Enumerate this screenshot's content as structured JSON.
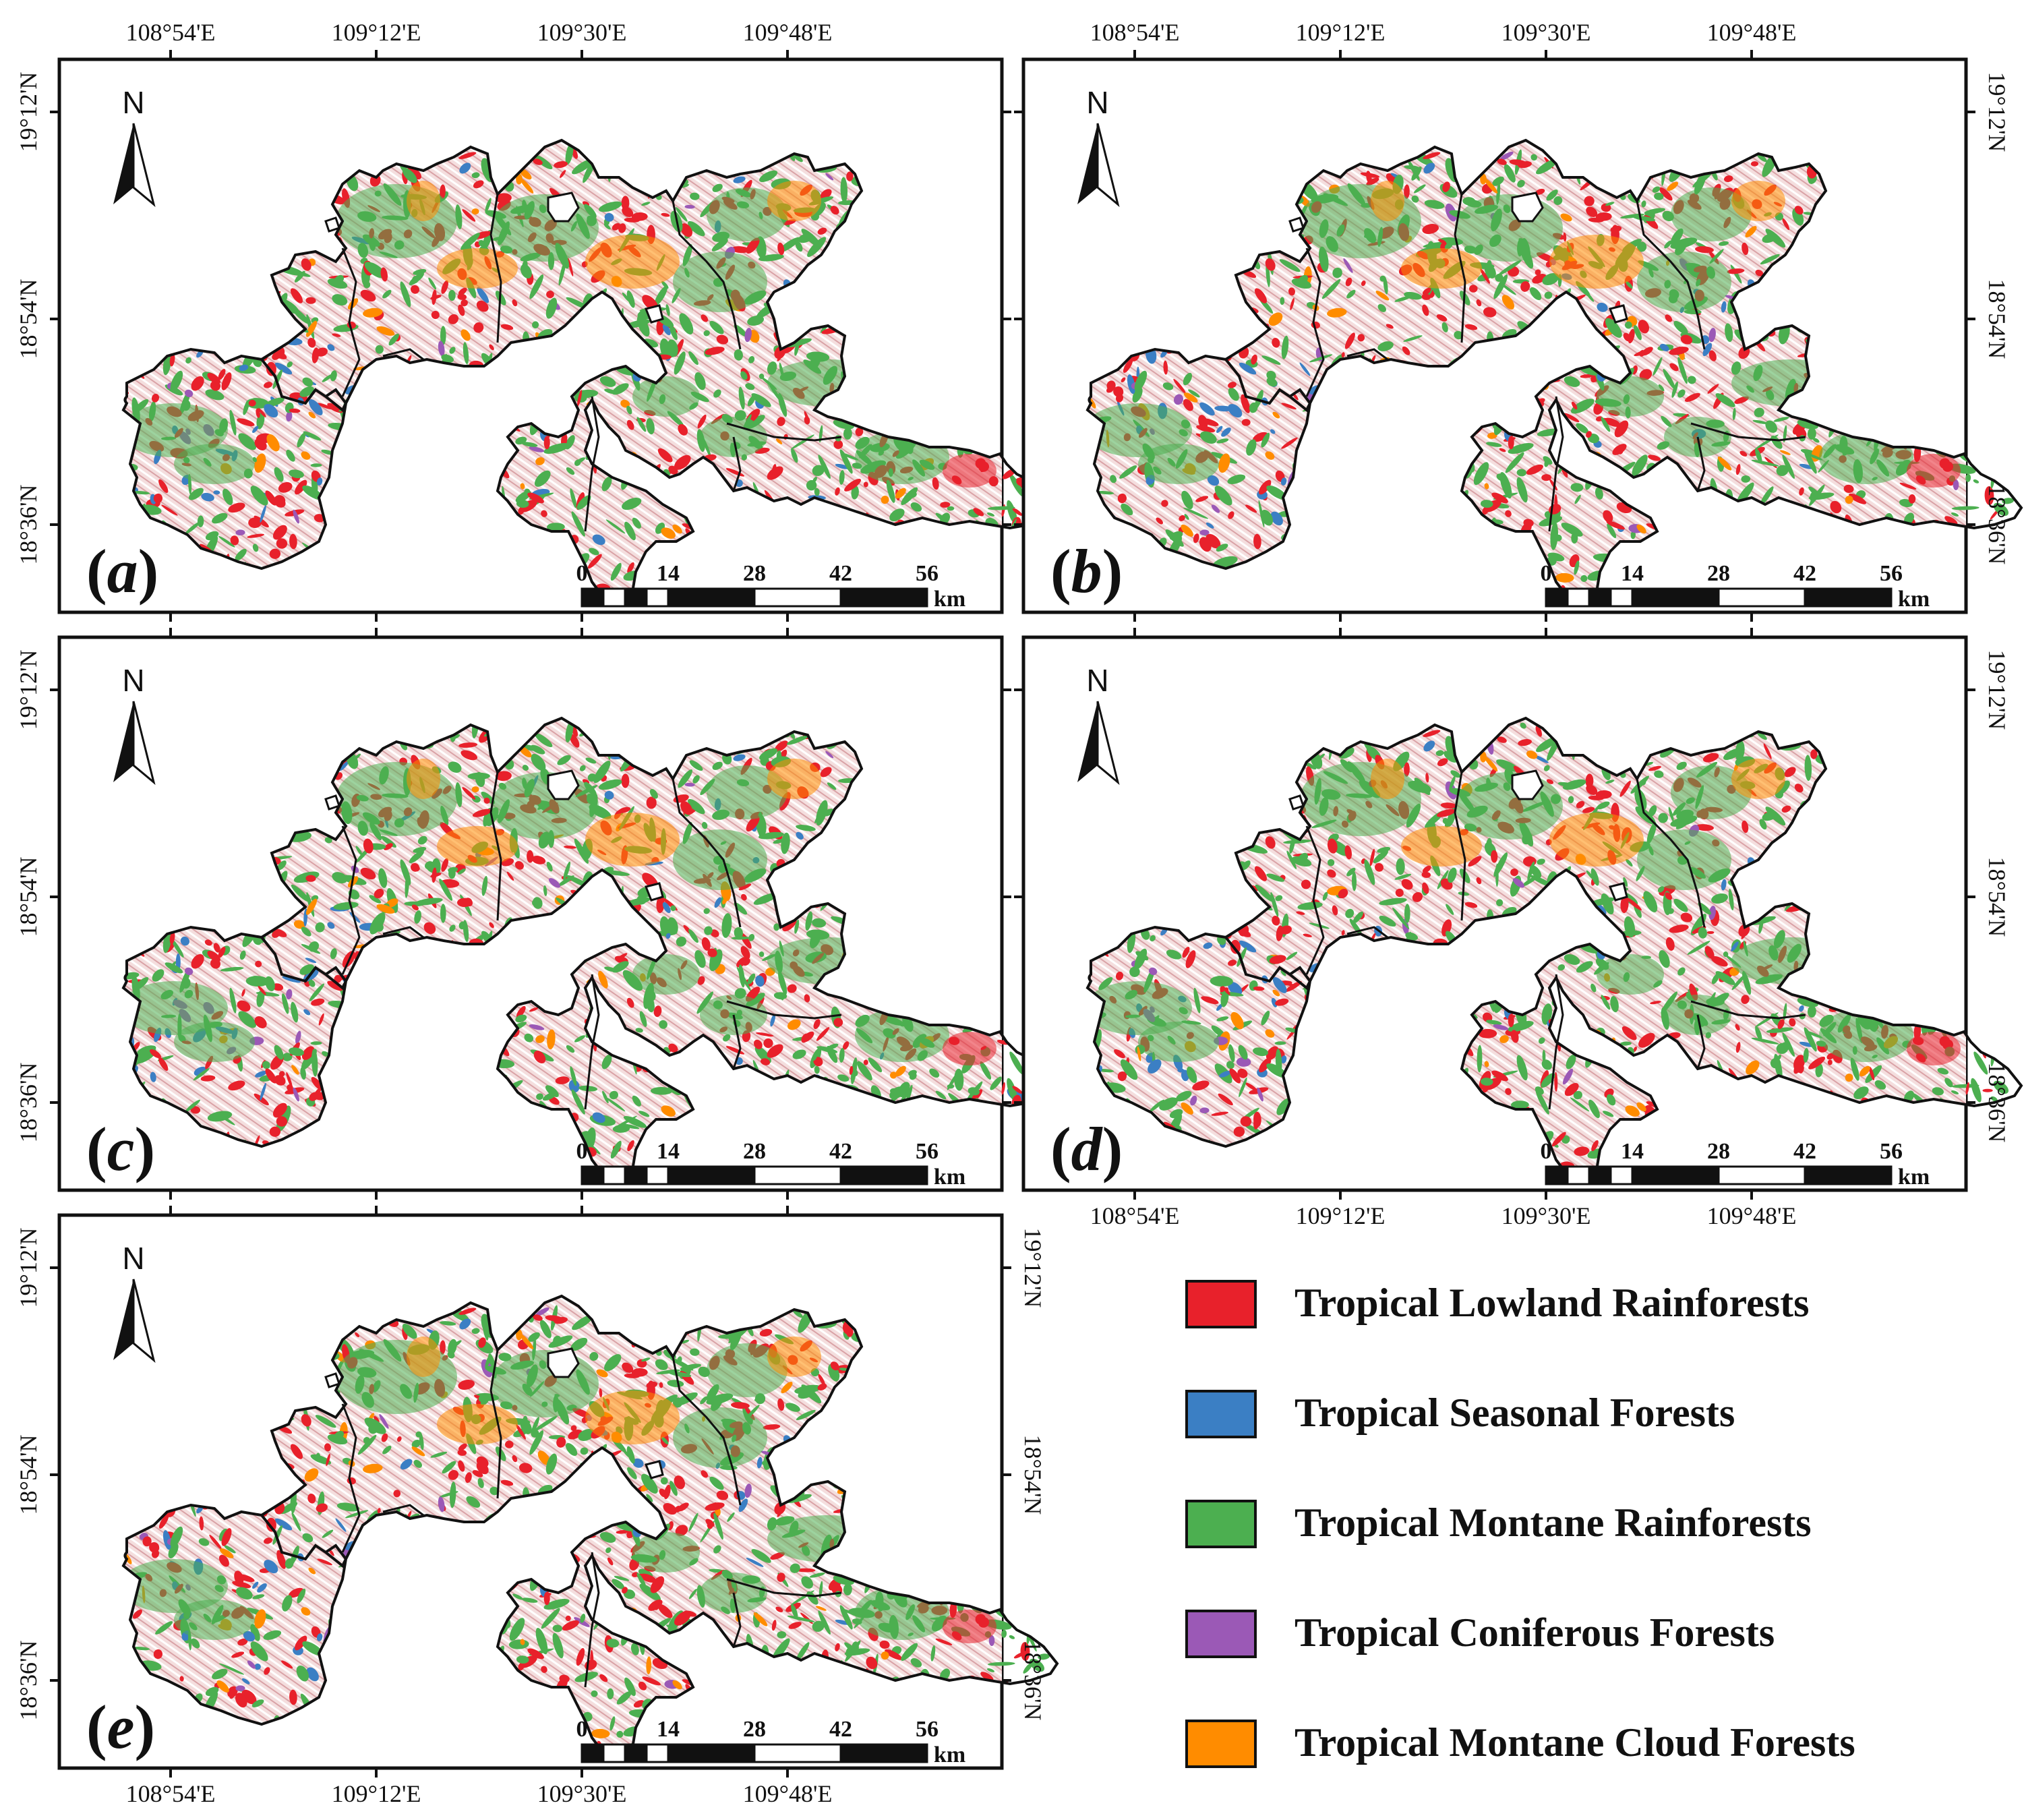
{
  "figure": {
    "lon_labels": [
      "108°54'E",
      "109°12'E",
      "109°30'E",
      "109°48'E"
    ],
    "lat_labels": [
      "19°12'N",
      "18°54'N",
      "18°36'N"
    ],
    "north_label": "N",
    "scale": {
      "labels": [
        "0",
        "14",
        "28",
        "42",
        "56"
      ],
      "unit": "km"
    },
    "panels": [
      {
        "id": "a",
        "label": "a"
      },
      {
        "id": "b",
        "label": "b"
      },
      {
        "id": "c",
        "label": "c"
      },
      {
        "id": "d",
        "label": "d"
      },
      {
        "id": "e",
        "label": "e"
      }
    ]
  },
  "legend": {
    "items": [
      {
        "label": "Tropical Lowland Rainforests",
        "color": "#e8212b"
      },
      {
        "label": "Tropical Seasonal Forests",
        "color": "#3b7fc4"
      },
      {
        "label": "Tropical Montane Rainforests",
        "color": "#4caf50"
      },
      {
        "label": "Tropical Coniferous Forests",
        "color": "#9b59b6"
      },
      {
        "label": "Tropical Montane Cloud Forests",
        "color": "#ff8c00"
      }
    ]
  }
}
